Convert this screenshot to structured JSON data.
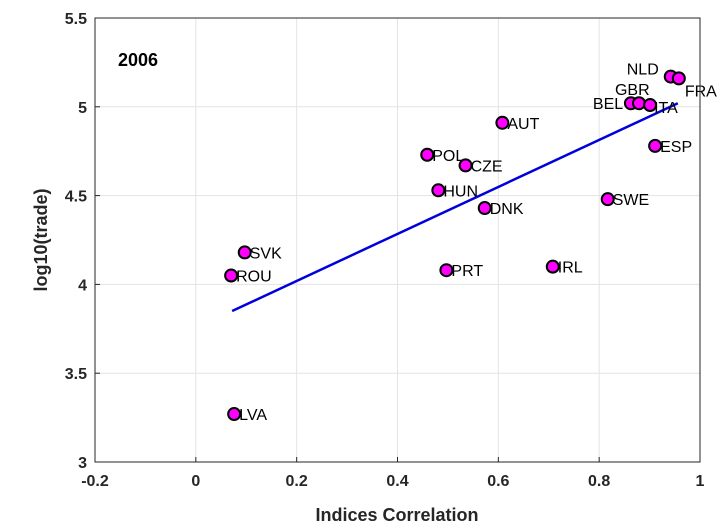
{
  "chart_data": {
    "type": "scatter",
    "title": "2006",
    "xlabel": "Indices Correlation",
    "ylabel": "log10(trade)",
    "xlim": [
      -0.2,
      1
    ],
    "ylim": [
      3,
      5.5
    ],
    "xticks": [
      -0.2,
      0,
      0.2,
      0.4,
      0.6,
      0.8,
      1
    ],
    "xtick_labels": [
      "-0.2",
      "0",
      "0.2",
      "0.4",
      "0.6",
      "0.8",
      "1"
    ],
    "yticks": [
      3,
      3.5,
      4,
      4.5,
      5,
      5.5
    ],
    "ytick_labels": [
      "3",
      "3.5",
      "4",
      "4.5",
      "5",
      "5.5"
    ],
    "grid": true,
    "marker_color": "#ff00ff",
    "line_color": "#0000dd",
    "points": [
      {
        "label": "SVK",
        "x": 0.097,
        "y": 4.18
      },
      {
        "label": "ROU",
        "x": 0.07,
        "y": 4.05
      },
      {
        "label": "LVA",
        "x": 0.076,
        "y": 3.27
      },
      {
        "label": "POL",
        "x": 0.459,
        "y": 4.73
      },
      {
        "label": "HUN",
        "x": 0.481,
        "y": 4.53
      },
      {
        "label": "CZE",
        "x": 0.535,
        "y": 4.67
      },
      {
        "label": "PRT",
        "x": 0.497,
        "y": 4.08
      },
      {
        "label": "DNK",
        "x": 0.573,
        "y": 4.43
      },
      {
        "label": "AUT",
        "x": 0.608,
        "y": 4.91
      },
      {
        "label": "IRL",
        "x": 0.708,
        "y": 4.1
      },
      {
        "label": "SWE",
        "x": 0.817,
        "y": 4.48
      },
      {
        "label": "ESP",
        "x": 0.911,
        "y": 4.78
      },
      {
        "label": "BEL",
        "x": 0.863,
        "y": 5.02
      },
      {
        "label": "GBR",
        "x": 0.879,
        "y": 5.02
      },
      {
        "label": "ITA",
        "x": 0.901,
        "y": 5.01
      },
      {
        "label": "NLD",
        "x": 0.942,
        "y": 5.17
      },
      {
        "label": "FRA",
        "x": 0.958,
        "y": 5.16
      }
    ],
    "fit_line": {
      "x": [
        0.072,
        0.956
      ],
      "y": [
        3.85,
        5.02
      ]
    }
  }
}
